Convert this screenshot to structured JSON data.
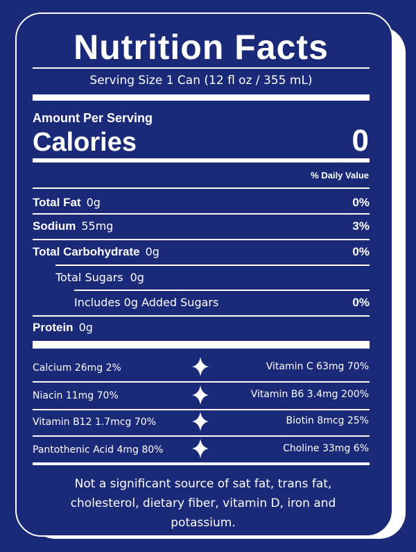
{
  "title": "Nutrition Facts",
  "serving_size": "Serving Size 1 Can (12 fl oz / 355 mL)",
  "amount_per_serving": "Amount Per Serving",
  "calories": {
    "label": "Calories",
    "value": 0
  },
  "daily_value_header": "% Daily Value",
  "nutrients": [
    {
      "name": "Total Fat",
      "amount": "0g",
      "daily_value": "0%"
    },
    {
      "name": "Sodium",
      "amount": "55mg",
      "daily_value": "3%"
    },
    {
      "name": "Total Carbohydrate",
      "amount": "0g",
      "daily_value": "0%"
    },
    {
      "name": "Total Sugars",
      "amount": "0g"
    },
    {
      "name": "Includes 0g Added Sugars",
      "daily_value": "0%"
    },
    {
      "name": "Protein",
      "amount": "0g"
    }
  ],
  "vitamins": [
    [
      "Calcium 26mg 2%",
      "Vitamin C 63mg 70%"
    ],
    [
      "Niacin 11mg 70%",
      "Vitamin B6 3.4mg 200%"
    ],
    [
      "Vitamin B12 1.7mcg 70%",
      "Biotin 8mcg 25%"
    ],
    [
      "Pantothenic Acid 4mg 80%",
      "Choline 33mg 6%"
    ]
  ],
  "footnote": "Not a significant source of sat fat, trans fat, cholesterol, dietary fiber, vitamin D, iron and potassium."
}
